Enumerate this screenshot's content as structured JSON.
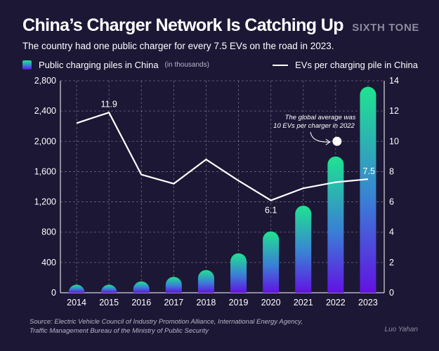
{
  "header": {
    "title": "China’s Charger Network Is Catching Up",
    "brand": "SIXTH TONE",
    "subtitle": "The country had one public charger for every 7.5 EVs on the road in 2023."
  },
  "legend": {
    "bars_label": "Public charging piles in China",
    "bars_note": "(in thousands)",
    "line_label": "EVs per charging pile in China"
  },
  "colors": {
    "background": "#1c1735",
    "bar_top": "#1fe390",
    "bar_mid": "#3a7fd6",
    "bar_bottom": "#6212e2",
    "line": "#ffffff",
    "grid": "#8d8a9f"
  },
  "chart_data": {
    "type": "bar+line",
    "categories": [
      "2014",
      "2015",
      "2016",
      "2017",
      "2018",
      "2019",
      "2020",
      "2021",
      "2022",
      "2023"
    ],
    "series": [
      {
        "name": "Public charging piles in China",
        "kind": "bar",
        "axis": "left",
        "values": [
          30,
          50,
          150,
          210,
          300,
          520,
          810,
          1150,
          1800,
          2720
        ]
      },
      {
        "name": "EVs per charging pile in China",
        "kind": "line",
        "axis": "right",
        "values": [
          11.2,
          11.9,
          7.8,
          7.2,
          8.8,
          7.4,
          6.1,
          6.9,
          7.3,
          7.5
        ]
      }
    ],
    "y_left": {
      "min": 0,
      "max": 2800,
      "ticks": [
        "0",
        "400",
        "800",
        "1,200",
        "1,600",
        "2,000",
        "2,400",
        "2,800"
      ]
    },
    "y_right": {
      "min": 0,
      "max": 14,
      "ticks": [
        "0",
        "2",
        "4",
        "6",
        "8",
        "10",
        "12",
        "14"
      ]
    },
    "data_labels": [
      {
        "index": 1,
        "text": "11.9"
      },
      {
        "index": 6,
        "text": "6.1"
      },
      {
        "index": 9,
        "text": "7.5"
      }
    ],
    "annotation": {
      "lines": [
        "The global average was",
        "10 EVs per charger in 2022"
      ],
      "value": 10,
      "category_index": 8
    },
    "grid": true
  },
  "footer": {
    "source_line1": "Source: Electric Vehicle Council of Industry Promotion Alliance, International Energy Agency,",
    "source_line2": "Traffic Management Bureau of the Ministry of Public Security",
    "author": "Luo Yahan"
  }
}
